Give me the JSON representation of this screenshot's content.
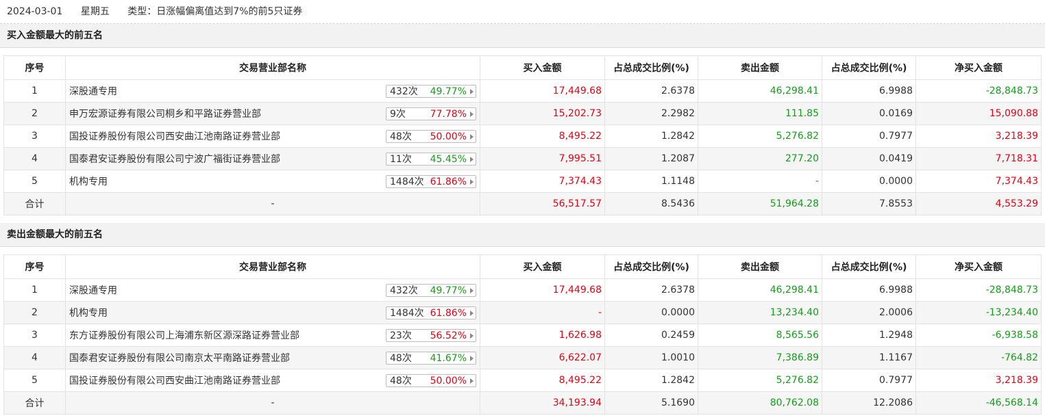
{
  "header": {
    "date": "2024-03-01",
    "weekday": "星期五",
    "type_label": "类型：日涨幅偏离值达到7%的前5只证券"
  },
  "columns": [
    "序号",
    "交易营业部名称",
    "买入金额",
    "占总成交比例(%)",
    "卖出金额",
    "占总成交比例(%)",
    "净买入金额"
  ],
  "colors": {
    "red": "#e60012",
    "green": "#119f16"
  },
  "sections": [
    {
      "title": "买入金额最大的前五名",
      "rows": [
        {
          "idx": "1",
          "name": "深股通专用",
          "count": "432次",
          "pct": "49.77%",
          "pct_color": "green",
          "buy": "17,449.68",
          "buy_pct": "2.6378",
          "sell": "46,298.41",
          "sell_pct": "6.9988",
          "net": "-28,848.73",
          "net_color": "green"
        },
        {
          "idx": "2",
          "name": "申万宏源证券有限公司桐乡和平路证券营业部",
          "count": "9次",
          "pct": "77.78%",
          "pct_color": "red",
          "buy": "15,202.73",
          "buy_pct": "2.2982",
          "sell": "111.85",
          "sell_pct": "0.0169",
          "net": "15,090.88",
          "net_color": "red"
        },
        {
          "idx": "3",
          "name": "国投证券股份有限公司西安曲江池南路证券营业部",
          "count": "48次",
          "pct": "50.00%",
          "pct_color": "red",
          "buy": "8,495.22",
          "buy_pct": "1.2842",
          "sell": "5,276.82",
          "sell_pct": "0.7977",
          "net": "3,218.39",
          "net_color": "red"
        },
        {
          "idx": "4",
          "name": "国泰君安证券股份有限公司宁波广福街证券营业部",
          "count": "11次",
          "pct": "45.45%",
          "pct_color": "green",
          "buy": "7,995.51",
          "buy_pct": "1.2087",
          "sell": "277.20",
          "sell_pct": "0.0419",
          "net": "7,718.31",
          "net_color": "red"
        },
        {
          "idx": "5",
          "name": "机构专用",
          "count": "1484次",
          "pct": "61.86%",
          "pct_color": "red",
          "buy": "7,374.43",
          "buy_pct": "1.1148",
          "sell": "-",
          "sell_pct": "0.0000",
          "net": "7,374.43",
          "net_color": "red"
        }
      ],
      "total": {
        "label": "合计",
        "name": "-",
        "buy": "56,517.57",
        "buy_pct": "8.5436",
        "sell": "51,964.28",
        "sell_pct": "7.8553",
        "net": "4,553.29",
        "net_color": "red"
      }
    },
    {
      "title": "卖出金额最大的前五名",
      "rows": [
        {
          "idx": "1",
          "name": "深股通专用",
          "count": "432次",
          "pct": "49.77%",
          "pct_color": "green",
          "buy": "17,449.68",
          "buy_pct": "2.6378",
          "sell": "46,298.41",
          "sell_pct": "6.9988",
          "net": "-28,848.73",
          "net_color": "green"
        },
        {
          "idx": "2",
          "name": "机构专用",
          "count": "1484次",
          "pct": "61.86%",
          "pct_color": "red",
          "buy": "-",
          "buy_pct": "0.0000",
          "sell": "13,234.40",
          "sell_pct": "2.0006",
          "net": "-13,234.40",
          "net_color": "green"
        },
        {
          "idx": "3",
          "name": "东方证券股份有限公司上海浦东新区源深路证券营业部",
          "count": "23次",
          "pct": "56.52%",
          "pct_color": "red",
          "buy": "1,626.98",
          "buy_pct": "0.2459",
          "sell": "8,565.56",
          "sell_pct": "1.2948",
          "net": "-6,938.58",
          "net_color": "green"
        },
        {
          "idx": "4",
          "name": "国泰君安证券股份有限公司南京太平南路证券营业部",
          "count": "48次",
          "pct": "41.67%",
          "pct_color": "green",
          "buy": "6,622.07",
          "buy_pct": "1.0010",
          "sell": "7,386.89",
          "sell_pct": "1.1167",
          "net": "-764.82",
          "net_color": "green"
        },
        {
          "idx": "5",
          "name": "国投证券股份有限公司西安曲江池南路证券营业部",
          "count": "48次",
          "pct": "50.00%",
          "pct_color": "red",
          "buy": "8,495.22",
          "buy_pct": "1.2842",
          "sell": "5,276.82",
          "sell_pct": "0.7977",
          "net": "3,218.39",
          "net_color": "red"
        }
      ],
      "total": {
        "label": "合计",
        "name": "-",
        "buy": "34,193.94",
        "buy_pct": "5.1690",
        "sell": "80,762.08",
        "sell_pct": "12.2086",
        "net": "-46,568.14",
        "net_color": "green"
      }
    }
  ]
}
